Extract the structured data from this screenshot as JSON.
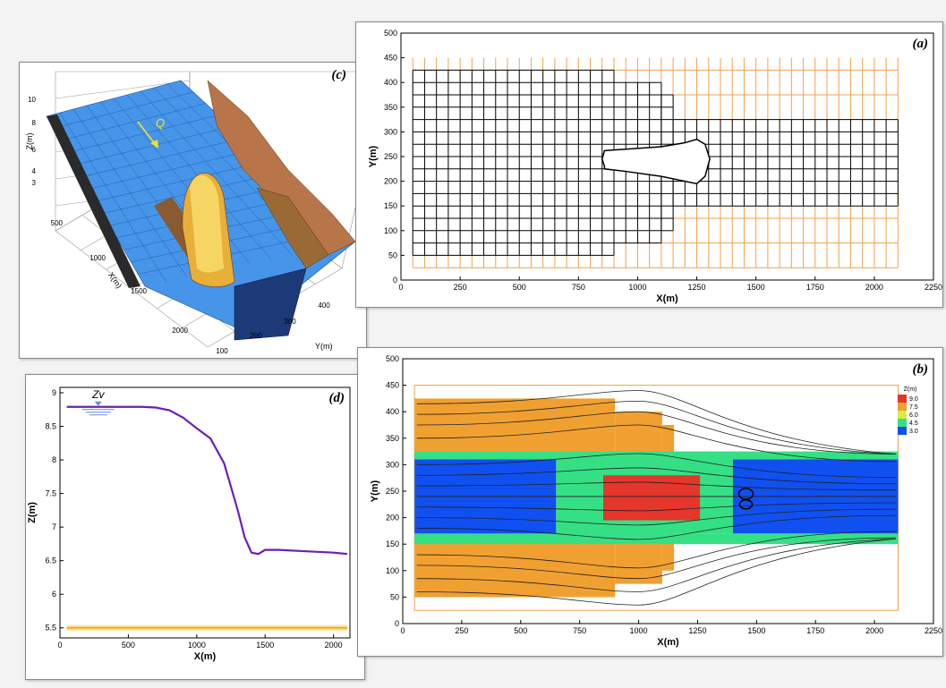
{
  "chart_data": [
    {
      "id": "a",
      "type": "grid-mesh",
      "panel_label": "(a)",
      "xlabel": "X(m)",
      "ylabel": "Y(m)",
      "xlim": [
        0,
        2250
      ],
      "ylim": [
        0,
        500
      ],
      "xticks": [
        0,
        250,
        500,
        750,
        1000,
        1250,
        1500,
        1750,
        2000,
        2250
      ],
      "yticks": [
        0,
        50,
        100,
        150,
        200,
        250,
        300,
        350,
        400,
        450,
        500
      ],
      "grid_step": 50,
      "outer_grid": {
        "x": [
          50,
          2100
        ],
        "y": [
          25,
          450
        ],
        "color": "#f5a04a"
      },
      "mesh_blocks": [
        {
          "x": [
            50,
            900
          ],
          "y": [
            50,
            425
          ]
        },
        {
          "x": [
            900,
            1100
          ],
          "y": [
            75,
            400
          ]
        },
        {
          "x": [
            1100,
            1150
          ],
          "y": [
            100,
            375
          ]
        },
        {
          "x": [
            1150,
            2100
          ],
          "y": [
            150,
            325
          ]
        }
      ],
      "mesh_color": "#000000",
      "island": [
        [
          860,
          230
        ],
        [
          850,
          245
        ],
        [
          860,
          262
        ],
        [
          950,
          265
        ],
        [
          1100,
          270
        ],
        [
          1200,
          278
        ],
        [
          1250,
          285
        ],
        [
          1285,
          275
        ],
        [
          1305,
          245
        ],
        [
          1285,
          210
        ],
        [
          1250,
          195
        ],
        [
          1200,
          200
        ],
        [
          1100,
          210
        ],
        [
          950,
          220
        ],
        [
          860,
          225
        ]
      ]
    },
    {
      "id": "b",
      "type": "heatmap",
      "panel_label": "(b)",
      "xlabel": "X(m)",
      "ylabel": "Y(m)",
      "xlim": [
        0,
        2250
      ],
      "ylim": [
        0,
        500
      ],
      "xticks": [
        0,
        250,
        500,
        750,
        1000,
        1250,
        1500,
        1750,
        2000,
        2250
      ],
      "yticks": [
        0,
        50,
        100,
        150,
        200,
        250,
        300,
        350,
        400,
        450,
        500
      ],
      "domain_box": {
        "x": [
          50,
          2100
        ],
        "y": [
          25,
          450
        ]
      },
      "legend": {
        "title": "Z(m)",
        "levels": [
          "9.0",
          "7.5",
          "6.0",
          "4.5",
          "3.0"
        ],
        "colors": [
          "#e6352a",
          "#f0a030",
          "#d8f040",
          "#35e085",
          "#1050f0"
        ]
      },
      "regions": [
        {
          "x": [
            50,
            900
          ],
          "y": [
            50,
            425
          ],
          "z": 6.8
        },
        {
          "x": [
            900,
            1100
          ],
          "y": [
            75,
            400
          ],
          "z": 6.8
        },
        {
          "x": [
            1100,
            1150
          ],
          "y": [
            100,
            375
          ],
          "z": 6.8
        },
        {
          "x": [
            50,
            650
          ],
          "y": [
            170,
            310
          ],
          "z": 3.0
        },
        {
          "x": [
            650,
            1400
          ],
          "y": [
            170,
            310
          ],
          "z": 5.2
        },
        {
          "x": [
            1400,
            2100
          ],
          "y": [
            170,
            310
          ],
          "z": 3.2
        },
        {
          "x": [
            50,
            2100
          ],
          "y": [
            150,
            170
          ],
          "z": 4.8
        },
        {
          "x": [
            50,
            2100
          ],
          "y": [
            310,
            325
          ],
          "z": 4.8
        },
        {
          "x": [
            850,
            1260
          ],
          "y": [
            195,
            280
          ],
          "z": 9.0
        }
      ]
    },
    {
      "id": "c",
      "type": "surface3d",
      "panel_label": "(c)",
      "flow_label": "Q",
      "xlabel": "X(m)",
      "ylabel": "Y(m)",
      "zlabel": "Z(m)",
      "xticks": [
        "500",
        "1000",
        "1500",
        "2000"
      ],
      "yticks": [
        "100",
        "200",
        "300",
        "400"
      ],
      "zticks": [
        "3",
        "4",
        "6",
        "8",
        "10"
      ]
    },
    {
      "id": "d",
      "type": "line",
      "panel_label": "(d)",
      "xlabel": "X(m)",
      "ylabel": "Z(m)",
      "xlim": [
        0,
        2120
      ],
      "ylim": [
        5.35,
        9.08
      ],
      "xticks": [
        0,
        500,
        1000,
        1500,
        2000
      ],
      "yticks": [
        5.5,
        6,
        6.5,
        7,
        7.5,
        8,
        8.5,
        9
      ],
      "water_label": "Zv",
      "series": [
        {
          "color": "#6a1fb8",
          "x": [
            50,
            200,
            400,
            600,
            700,
            800,
            900,
            1000,
            1100,
            1200,
            1300,
            1350,
            1400,
            1450,
            1500,
            1600,
            1800,
            2000,
            2100
          ],
          "y": [
            8.79,
            8.79,
            8.79,
            8.79,
            8.78,
            8.74,
            8.63,
            8.47,
            8.32,
            7.95,
            7.25,
            6.85,
            6.62,
            6.6,
            6.66,
            6.66,
            6.64,
            6.62,
            6.6
          ]
        }
      ],
      "bed_level": 5.5
    }
  ]
}
